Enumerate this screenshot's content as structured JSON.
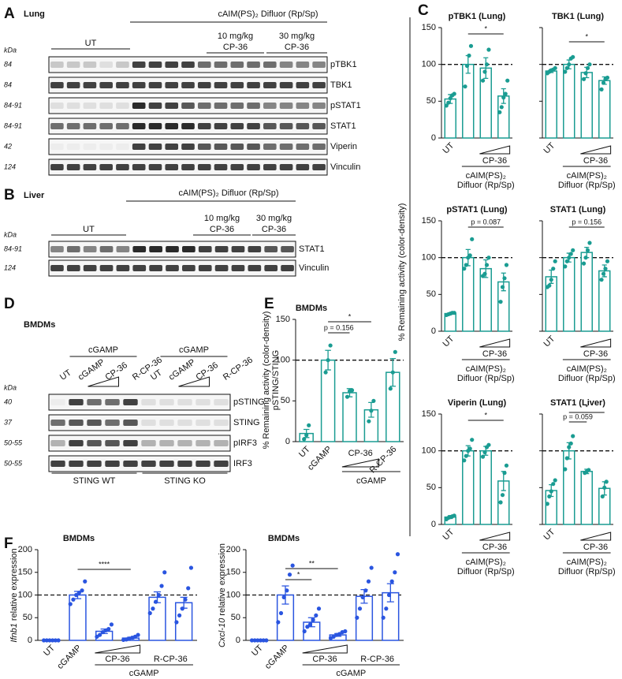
{
  "blots": {
    "A": {
      "panel": "A",
      "tissue": "Lung",
      "treatment": "cAIM(PS)₂ Difluor (Rp/Sp)",
      "groups": [
        [
          "UT"
        ],
        [
          "10 mg/kg",
          "CP-36"
        ],
        [
          "30 mg/kg",
          "CP-36"
        ]
      ],
      "kda_label": "kDa",
      "rows": [
        {
          "kda": "84",
          "protein": "pTBK1"
        },
        {
          "kda": "84",
          "protein": "TBK1"
        },
        {
          "kda": "84-91",
          "protein": "pSTAT1"
        },
        {
          "kda": "84-91",
          "protein": "STAT1"
        },
        {
          "kda": "42",
          "protein": "Viperin"
        },
        {
          "kda": "124",
          "protein": "Vinculin"
        }
      ]
    },
    "B": {
      "panel": "B",
      "tissue": "Liver",
      "treatment": "cAIM(PS)₂ Difluor (Rp/Sp)",
      "groups": [
        [
          "UT"
        ],
        [
          "10 mg/kg",
          "CP-36"
        ],
        [
          "30 mg/kg",
          "CP-36"
        ]
      ],
      "kda_label": "kDa",
      "rows": [
        {
          "kda": "84-91",
          "protein": "STAT1"
        },
        {
          "kda": "124",
          "protein": "Vinculin"
        }
      ]
    },
    "D": {
      "panel": "D",
      "title": "BMDMs",
      "treatment_groups": [
        "cGAMP",
        "cGAMP"
      ],
      "lanes": [
        "UT",
        "cGAMP",
        "CP-36",
        "R-CP-36",
        "UT",
        "cGAMP",
        "CP-36",
        "R-CP-36"
      ],
      "kda_label": "kDa",
      "rows": [
        {
          "kda": "40",
          "protein": "pSTING"
        },
        {
          "kda": "37",
          "protein": "STING"
        },
        {
          "kda": "50-55",
          "protein": "pIRF3"
        },
        {
          "kda": "50-55",
          "protein": "IRF3"
        }
      ],
      "genotypes": [
        "STING WT",
        "STING KO"
      ]
    }
  },
  "shared_y_label": "% Remaining activity (color-density)",
  "chart_data": [
    {
      "type": "bar",
      "panel": "C",
      "title": "pTBK1 (Lung)",
      "categories": [
        "UT",
        null,
        null,
        null
      ],
      "values": [
        53,
        100,
        95,
        57
      ],
      "errors": [
        6,
        12,
        14,
        10
      ],
      "points": [
        [
          44,
          48,
          54,
          58,
          60
        ],
        [
          70,
          98,
          112,
          125
        ],
        [
          78,
          90,
          100,
          120
        ],
        [
          35,
          42,
          55,
          60,
          78
        ]
      ],
      "ylim": [
        0,
        150
      ],
      "yticks": [
        0,
        50,
        100,
        150
      ],
      "reference_line": 100,
      "color": "#1a9c92",
      "significance": [
        "*"
      ],
      "groups": [
        [
          "CP-36"
        ],
        [
          "cAIM(PS)₂",
          "Difluor (Rp/Sp)"
        ]
      ]
    },
    {
      "type": "bar",
      "title": "TBK1 (Lung)",
      "categories": [
        "UT",
        null,
        null,
        null
      ],
      "values": [
        91,
        100,
        89,
        78
      ],
      "errors": [
        2,
        6,
        7,
        5
      ],
      "points": [
        [
          88,
          90,
          92,
          93,
          95
        ],
        [
          90,
          95,
          100,
          108,
          110
        ],
        [
          80,
          88,
          95,
          100
        ],
        [
          66,
          75,
          80,
          82
        ]
      ],
      "ylim": [
        0,
        150
      ],
      "yticks": [
        0,
        50,
        100,
        150
      ],
      "reference_line": 100,
      "color": "#1a9c92",
      "significance": [
        "*"
      ],
      "groups": [
        [
          "CP-36"
        ],
        [
          "cAIM(PS)₂",
          "Difluor (Rp/Sp)"
        ]
      ]
    },
    {
      "type": "bar",
      "title": "pSTAT1 (Lung)",
      "categories": [
        "UT",
        null,
        null,
        null
      ],
      "values": [
        24,
        100,
        85,
        67
      ],
      "errors": [
        1,
        11,
        12,
        12
      ],
      "points": [
        [
          22,
          23,
          24,
          25,
          25
        ],
        [
          85,
          90,
          100,
          103,
          125
        ],
        [
          75,
          78,
          90,
          100
        ],
        [
          40,
          60,
          72,
          90
        ]
      ],
      "ylim": [
        0,
        150
      ],
      "yticks": [
        0,
        50,
        100,
        150
      ],
      "reference_line": 100,
      "color": "#1a9c92",
      "significance": [
        "p = 0.087"
      ],
      "groups": [
        [
          "CP-36"
        ],
        [
          "cAIM(PS)₂",
          "Difluor (Rp/Sp)"
        ]
      ]
    },
    {
      "type": "bar",
      "title": "STAT1 (Lung)",
      "categories": [
        "UT",
        null,
        null,
        null
      ],
      "values": [
        74,
        100,
        107,
        82
      ],
      "errors": [
        9,
        6,
        7,
        8
      ],
      "points": [
        [
          60,
          62,
          70,
          85,
          95
        ],
        [
          88,
          95,
          100,
          105,
          110
        ],
        [
          92,
          100,
          110,
          120
        ],
        [
          70,
          78,
          85,
          95
        ]
      ],
      "ylim": [
        0,
        150
      ],
      "yticks": [
        0,
        50,
        100,
        150
      ],
      "reference_line": 100,
      "color": "#1a9c92",
      "significance": [
        "p = 0.156"
      ],
      "groups": [
        [
          "CP-36"
        ],
        [
          "cAIM(PS)₂",
          "Difluor (Rp/Sp)"
        ]
      ]
    },
    {
      "type": "bar",
      "title": "Viperin (Lung)",
      "categories": [
        "UT",
        null,
        null,
        null
      ],
      "values": [
        10,
        100,
        100,
        59
      ],
      "errors": [
        2,
        7,
        6,
        13
      ],
      "points": [
        [
          7,
          9,
          10,
          11,
          12
        ],
        [
          87,
          93,
          100,
          103,
          115
        ],
        [
          92,
          98,
          105,
          108
        ],
        [
          30,
          40,
          70,
          80
        ]
      ],
      "ylim": [
        0,
        150
      ],
      "yticks": [
        0,
        50,
        100,
        150
      ],
      "reference_line": 100,
      "color": "#1a9c92",
      "significance": [
        "*"
      ],
      "groups": [
        [
          "CP-36"
        ],
        [
          "cAIM(PS)₂",
          "Difluor (Rp/Sp)"
        ]
      ]
    },
    {
      "type": "bar",
      "title": "STAT1 (Liver)",
      "categories": [
        "UT",
        null,
        null,
        null
      ],
      "values": [
        46,
        100,
        72,
        49
      ],
      "errors": [
        8,
        11,
        3,
        9
      ],
      "points": [
        [
          28,
          38,
          45,
          55,
          60
        ],
        [
          75,
          90,
          105,
          110,
          120
        ],
        [
          70,
          72,
          74
        ],
        [
          38,
          50,
          58
        ]
      ],
      "ylim": [
        0,
        150
      ],
      "yticks": [
        0,
        50,
        100,
        150
      ],
      "reference_line": 100,
      "color": "#1a9c92",
      "significance": [
        "p = 0.059",
        "*"
      ],
      "groups": [
        [
          "CP-36"
        ],
        [
          "cAIM(PS)₂",
          "Difluor (Rp/Sp)"
        ]
      ]
    },
    {
      "type": "bar",
      "panel": "E",
      "title": "BMDMs",
      "y_label": [
        "% Remaining activity (color-density)",
        "pSTING/STING"
      ],
      "categories": [
        "UT",
        "cGAMP",
        null,
        null,
        "R-CP-36"
      ],
      "values": [
        10,
        100,
        60,
        39,
        85
      ],
      "errors": [
        5,
        12,
        5,
        9,
        17
      ],
      "points": [
        [
          3,
          8,
          20
        ],
        [
          85,
          100,
          118
        ],
        [
          55,
          62,
          63
        ],
        [
          25,
          38,
          50
        ],
        [
          65,
          85,
          110
        ]
      ],
      "ylim": [
        0,
        150
      ],
      "yticks": [
        0,
        50,
        100,
        150
      ],
      "reference_line": 100,
      "color": "#1a9c92",
      "significance": [
        "p = 0.156",
        "*"
      ],
      "groups": [
        [
          "CP-36"
        ],
        [
          "cGAMP"
        ]
      ]
    },
    {
      "type": "bar",
      "panel": "F",
      "title": "BMDMs",
      "y_label_gene": "Ifnb1",
      "y_label": "relative expression",
      "categories": [
        "UT",
        "cGAMP",
        null,
        null,
        null,
        null
      ],
      "values": [
        0,
        100,
        20,
        5,
        95,
        83
      ],
      "errors": [
        0.5,
        8,
        5,
        2,
        12,
        12
      ],
      "points": [
        [
          0,
          0,
          0,
          0,
          0,
          0
        ],
        [
          80,
          90,
          100,
          105,
          110,
          130
        ],
        [
          8,
          12,
          18,
          22,
          25,
          35
        ],
        [
          1,
          2,
          4,
          6,
          8,
          12
        ],
        [
          60,
          70,
          85,
          100,
          120,
          150
        ],
        [
          40,
          55,
          70,
          90,
          115,
          160
        ]
      ],
      "ylim": [
        0,
        200
      ],
      "yticks": [
        0,
        50,
        100,
        150,
        200
      ],
      "reference_line": 100,
      "color": "#2a55e0",
      "significance": [
        "****"
      ],
      "groups": [
        [
          "CP-36"
        ],
        [
          "R-CP-36"
        ],
        [
          "cGAMP"
        ]
      ]
    },
    {
      "type": "bar",
      "title": "BMDMs",
      "y_label_gene": "Cxcl-10",
      "y_label": "relative expression",
      "categories": [
        "UT",
        "cGAMP",
        null,
        null,
        null,
        null
      ],
      "values": [
        0,
        100,
        40,
        12,
        97,
        105
      ],
      "errors": [
        0.5,
        20,
        10,
        3,
        15,
        20
      ],
      "points": [
        [
          0,
          0,
          0,
          0,
          0,
          0
        ],
        [
          40,
          60,
          95,
          110,
          145,
          165
        ],
        [
          20,
          30,
          35,
          45,
          55,
          70
        ],
        [
          5,
          8,
          12,
          14,
          18,
          20
        ],
        [
          50,
          70,
          95,
          110,
          130,
          160
        ],
        [
          50,
          70,
          100,
          130,
          150,
          190
        ]
      ],
      "ylim": [
        0,
        200
      ],
      "yticks": [
        0,
        50,
        100,
        150,
        200
      ],
      "reference_line": 100,
      "color": "#2a55e0",
      "significance": [
        "*",
        "**"
      ],
      "groups": [
        [
          "CP-36"
        ],
        [
          "R-CP-36"
        ],
        [
          "cGAMP"
        ]
      ]
    }
  ]
}
